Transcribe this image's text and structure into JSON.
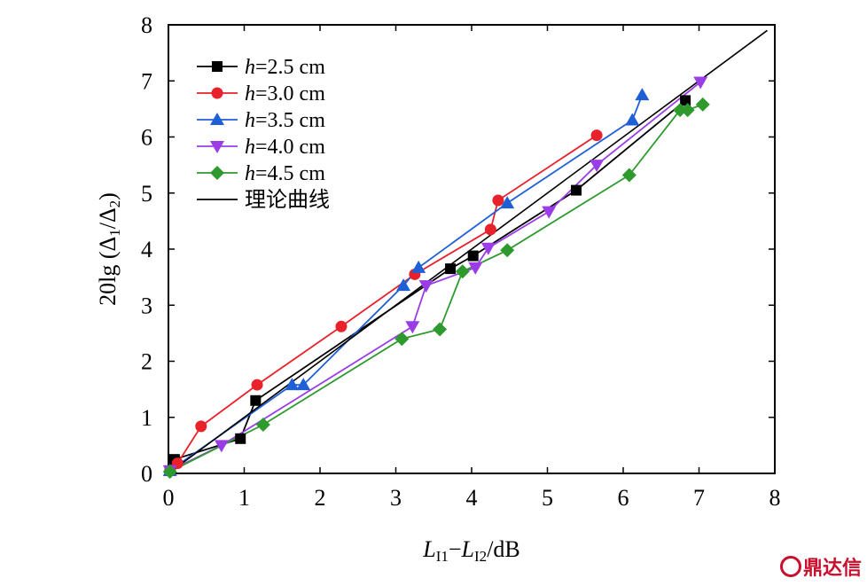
{
  "chart_data": {
    "type": "line",
    "xlabel": {
      "main1": "L",
      "sub1": "I1",
      "dash": "−",
      "main2": "L",
      "sub2": "I2",
      "unit": "/dB"
    },
    "ylabel": {
      "pre": "20lg (Δ",
      "sub1": "1",
      "mid": "/Δ",
      "sub2": "2",
      "post": ")"
    },
    "xlim": [
      0,
      8
    ],
    "ylim": [
      0,
      8
    ],
    "xticks": [
      "0",
      "1",
      "2",
      "3",
      "4",
      "5",
      "6",
      "7",
      "8"
    ],
    "yticks": [
      "0",
      "1",
      "2",
      "3",
      "4",
      "5",
      "6",
      "7",
      "8"
    ],
    "grid": false,
    "legend_position": "top-left",
    "series": [
      {
        "name": "h=2.5 cm",
        "var": "h",
        "rest": "=2.5 cm",
        "color": "#000000",
        "marker": "square",
        "x": [
          0.02,
          0.08,
          0.95,
          1.15,
          3.72,
          4.02,
          5.38,
          6.82
        ],
        "y": [
          0.05,
          0.25,
          0.62,
          1.3,
          3.65,
          3.88,
          5.05,
          6.65
        ]
      },
      {
        "name": "h=3.0 cm",
        "var": "h",
        "rest": "=3.0 cm",
        "color": "#e8212b",
        "marker": "circle",
        "x": [
          0.02,
          0.12,
          0.43,
          1.17,
          2.28,
          3.25,
          4.25,
          4.35,
          5.65
        ],
        "y": [
          0.05,
          0.18,
          0.84,
          1.58,
          2.62,
          3.55,
          4.35,
          4.87,
          6.03
        ]
      },
      {
        "name": "h=3.5 cm",
        "var": "h",
        "rest": "=3.5 cm",
        "color": "#1f5fd6",
        "marker": "triangle-up",
        "x": [
          0.02,
          1.63,
          1.78,
          3.1,
          3.3,
          4.47,
          6.12,
          6.25
        ],
        "y": [
          0.05,
          1.58,
          1.58,
          3.35,
          3.67,
          4.82,
          6.3,
          6.75
        ]
      },
      {
        "name": "h=4.0 cm",
        "var": "h",
        "rest": "=4.0 cm",
        "color": "#9b3de6",
        "marker": "triangle-down",
        "x": [
          0.02,
          0.7,
          3.22,
          3.4,
          4.05,
          4.22,
          5.02,
          5.65,
          7.02
        ],
        "y": [
          0.05,
          0.5,
          2.62,
          3.35,
          3.67,
          4.02,
          4.67,
          5.5,
          6.98
        ]
      },
      {
        "name": "h=4.5 cm",
        "var": "h",
        "rest": "=4.5 cm",
        "color": "#2e9a2e",
        "marker": "diamond",
        "x": [
          0.02,
          1.25,
          3.08,
          3.58,
          3.88,
          4.47,
          6.08,
          6.75,
          6.85,
          7.05
        ],
        "y": [
          0.03,
          0.87,
          2.4,
          2.57,
          3.6,
          3.98,
          5.32,
          6.48,
          6.48,
          6.58
        ]
      },
      {
        "name": "理论曲线",
        "var": "",
        "rest": "理论曲线",
        "color": "#000000",
        "marker": "none",
        "x": [
          0,
          7.9
        ],
        "y": [
          0,
          7.9
        ]
      }
    ]
  },
  "watermark": {
    "text": "鼎达信",
    "color": "#c8102e"
  }
}
